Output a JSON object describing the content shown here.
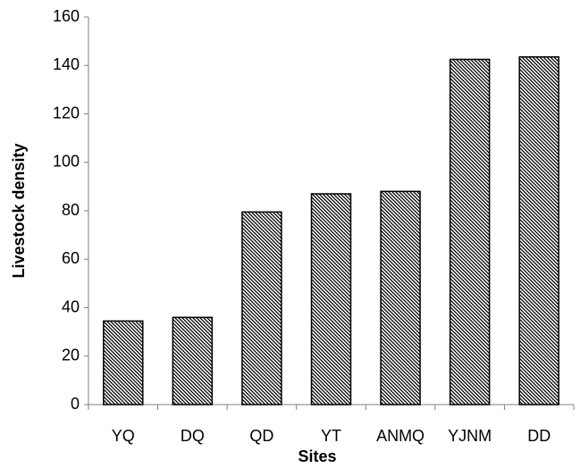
{
  "chart_data": {
    "type": "bar",
    "x_label": "Sites",
    "y_label": "Livestock density",
    "categories": [
      "YQ",
      "DQ",
      "QD",
      "YT",
      "ANMQ",
      "YJNM",
      "DD"
    ],
    "values": [
      34.5,
      36,
      79.5,
      87,
      88,
      142.5,
      143.5
    ],
    "color": "#000000",
    "ylim": [
      0,
      160
    ],
    "yticks": [
      0,
      20,
      40,
      60,
      80,
      100,
      120,
      140,
      160
    ],
    "grid": false
  }
}
